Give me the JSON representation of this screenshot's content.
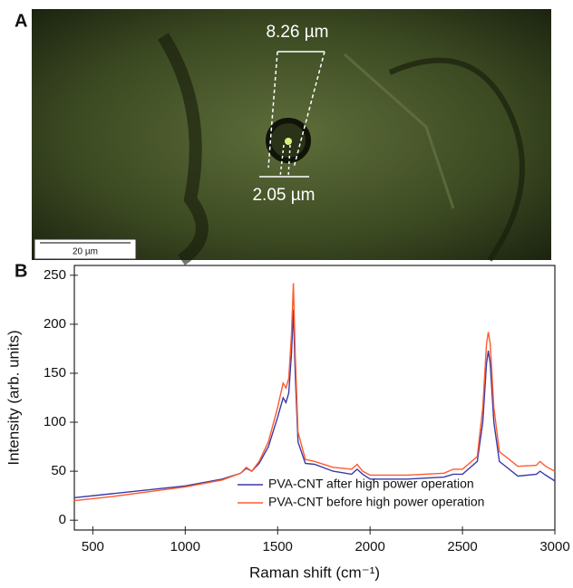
{
  "panel_labels": [
    "A",
    "B"
  ],
  "image": {
    "annotations": [
      "8.26 µm",
      "2.05 µm"
    ],
    "scale_bar": "20 µm"
  },
  "chart_data": {
    "type": "line",
    "x_label": "Raman shift (cm⁻¹)",
    "y_label": "Intensity (arb. units)",
    "x": [
      400,
      600,
      800,
      1000,
      1200,
      1300,
      1330,
      1360,
      1400,
      1450,
      1500,
      1530,
      1545,
      1560,
      1575,
      1585,
      1595,
      1610,
      1650,
      1700,
      1800,
      1900,
      1930,
      1960,
      2000,
      2200,
      2400,
      2450,
      2500,
      2580,
      2610,
      2630,
      2640,
      2650,
      2670,
      2700,
      2800,
      2900,
      2920,
      2950,
      3000
    ],
    "series": [
      {
        "name": "PVA-CNT after high power operation",
        "color": "#3a3aa8",
        "values": [
          23,
          27,
          31,
          35,
          42,
          48,
          53,
          50,
          58,
          75,
          105,
          125,
          120,
          130,
          170,
          215,
          150,
          80,
          58,
          57,
          50,
          47,
          52,
          47,
          42,
          42,
          44,
          47,
          47,
          60,
          100,
          160,
          173,
          160,
          100,
          60,
          45,
          47,
          50,
          46,
          40
        ]
      },
      {
        "name": "PVA-CNT before high power operation",
        "color": "#ff5a2e",
        "values": [
          20,
          24,
          29,
          34,
          41,
          48,
          54,
          50,
          60,
          80,
          115,
          140,
          135,
          145,
          190,
          242,
          170,
          90,
          62,
          60,
          54,
          52,
          57,
          50,
          46,
          46,
          48,
          52,
          52,
          65,
          115,
          180,
          192,
          180,
          115,
          70,
          55,
          56,
          60,
          55,
          50
        ]
      }
    ],
    "xlim": [
      400,
      3000
    ],
    "xticks": [
      500,
      1000,
      1500,
      2000,
      2500,
      3000
    ],
    "ylim": [
      -10,
      260
    ],
    "yticks": [
      0,
      50,
      100,
      150,
      200,
      250
    ],
    "legend": "lower right"
  }
}
